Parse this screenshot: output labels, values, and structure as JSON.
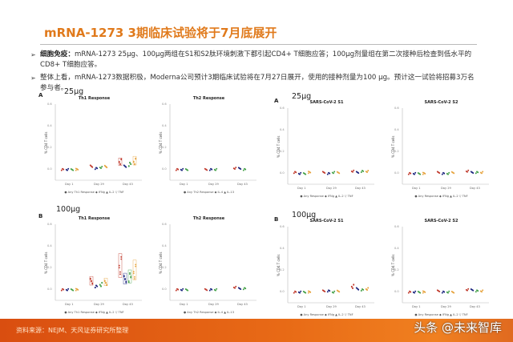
{
  "header": {
    "title": "mRNA-1273 3期临床试验将于7月底展开"
  },
  "bullets": [
    {
      "label": "细胞免疫：",
      "text": "mRNA-1273 25μg、100μg两组在S1和S2肽环境刺激下都引起CD4+ T细胞应答；100μg剂量组在第二次接种后检查到低水平的CD8+ T细胞应答。"
    },
    {
      "label": "",
      "text": "整体上看，mRNA-1273数据积极，Moderna公司预计3期临床试验将在7月27日展开，使用的接种剂量为100 μg。预计这一试验将招募3万名参与者。"
    }
  ],
  "panels": {
    "left_a": {
      "letter": "A",
      "dose": "25μg"
    },
    "left_b": {
      "letter": "B",
      "dose": "100μg"
    },
    "right_a": {
      "letter": "A",
      "dose": "25μg"
    },
    "right_b": {
      "letter": "B",
      "dose": "100μg"
    }
  },
  "axis": {
    "ylabel": "% CD4 T cells",
    "yticks": [
      "0.6",
      "0.4",
      "0.2",
      "0.0"
    ],
    "xticks": [
      "Day 1",
      "Day 29",
      "Day 43"
    ]
  },
  "legends": {
    "th1": "● Any Th1 Response  ◆ IFNg  ▲ IL-2  ▽ TNF",
    "th2": "● Any Th2 Response  ◆ IL-4  ▲ IL-13",
    "sars": "● Any Response  ◆ IFNg  ▲ IL-2  ▽ TNF"
  },
  "chart_titles": {
    "th1": "Th1 Response",
    "th2": "Th2 Response",
    "s1": "SARS-CoV-2 S1",
    "s2": "SARS-CoV-2 S2"
  },
  "chart_data": [
    {
      "type": "scatter",
      "title": "Th1 Response (25μg)",
      "ylabel": "% CD4 T cells",
      "categories": [
        "Day 1",
        "Day 29",
        "Day 43"
      ],
      "ylim": [
        -0.1,
        0.6
      ],
      "series": [
        {
          "name": "Any Th1 Response",
          "values": [
            0.0,
            0.03,
            0.07
          ]
        },
        {
          "name": "IFNg",
          "values": [
            0.0,
            0.01,
            0.03
          ]
        },
        {
          "name": "IL-2",
          "values": [
            0.0,
            0.02,
            0.05
          ]
        },
        {
          "name": "TNF",
          "values": [
            0.0,
            0.03,
            0.08
          ]
        }
      ]
    },
    {
      "type": "scatter",
      "title": "Th2 Response (25μg)",
      "ylabel": "% CD4 T cells",
      "categories": [
        "Day 1",
        "Day 29",
        "Day 43"
      ],
      "ylim": [
        -0.1,
        0.6
      ],
      "series": [
        {
          "name": "Any Th2 Response",
          "values": [
            0.0,
            0.0,
            0.01
          ]
        },
        {
          "name": "IL-4",
          "values": [
            0.0,
            0.0,
            0.01
          ]
        },
        {
          "name": "IL-13",
          "values": [
            0.0,
            0.0,
            0.0
          ]
        }
      ]
    },
    {
      "type": "scatter",
      "title": "SARS-CoV-2 S1 (25μg)",
      "ylabel": "% CD4 T cells",
      "categories": [
        "Day 1",
        "Day 29",
        "Day 43"
      ],
      "ylim": [
        -0.1,
        0.6
      ],
      "series": [
        {
          "name": "Any Response",
          "values": [
            0.01,
            0.01,
            0.02
          ]
        },
        {
          "name": "IFNg",
          "values": [
            0.0,
            0.0,
            0.01
          ]
        },
        {
          "name": "IL-2",
          "values": [
            0.0,
            0.01,
            0.02
          ]
        },
        {
          "name": "TNF",
          "values": [
            0.01,
            0.01,
            0.02
          ]
        }
      ]
    },
    {
      "type": "scatter",
      "title": "SARS-CoV-2 S2 (25μg)",
      "ylabel": "% CD4 T cells",
      "categories": [
        "Day 1",
        "Day 29",
        "Day 43"
      ],
      "ylim": [
        -0.1,
        0.6
      ],
      "series": [
        {
          "name": "Any Response",
          "values": [
            0.0,
            0.01,
            0.02
          ]
        },
        {
          "name": "IFNg",
          "values": [
            0.0,
            0.0,
            0.01
          ]
        },
        {
          "name": "IL-2",
          "values": [
            0.0,
            0.0,
            0.01
          ]
        },
        {
          "name": "TNF",
          "values": [
            0.0,
            0.01,
            0.01
          ]
        }
      ]
    },
    {
      "type": "scatter",
      "title": "Th1 Response (100μg)",
      "ylabel": "% CD4 T cells",
      "categories": [
        "Day 1",
        "Day 29",
        "Day 43"
      ],
      "ylim": [
        -0.1,
        0.6
      ],
      "series": [
        {
          "name": "Any Th1 Response",
          "values": [
            0.0,
            0.08,
            0.22
          ]
        },
        {
          "name": "IFNg",
          "values": [
            0.0,
            0.03,
            0.1
          ]
        },
        {
          "name": "IL-2",
          "values": [
            0.0,
            0.05,
            0.12
          ]
        },
        {
          "name": "TNF",
          "values": [
            0.0,
            0.07,
            0.18
          ]
        }
      ]
    },
    {
      "type": "scatter",
      "title": "Th2 Response (100μg)",
      "ylabel": "% CD4 T cells",
      "categories": [
        "Day 1",
        "Day 29",
        "Day 43"
      ],
      "ylim": [
        -0.1,
        0.6
      ],
      "series": [
        {
          "name": "Any Th2 Response",
          "values": [
            0.0,
            0.0,
            0.02
          ]
        },
        {
          "name": "IL-4",
          "values": [
            0.0,
            0.0,
            0.01
          ]
        },
        {
          "name": "IL-13",
          "values": [
            0.0,
            0.0,
            0.01
          ]
        }
      ]
    },
    {
      "type": "scatter",
      "title": "SARS-CoV-2 S1 (100μg)",
      "ylabel": "% CD4 T cells",
      "categories": [
        "Day 1",
        "Day 29",
        "Day 43"
      ],
      "ylim": [
        -0.1,
        0.6
      ],
      "series": [
        {
          "name": "Any Response",
          "values": [
            0.0,
            0.01,
            0.05
          ]
        },
        {
          "name": "IFNg",
          "values": [
            0.0,
            0.01,
            0.03
          ]
        },
        {
          "name": "IL-2",
          "values": [
            0.0,
            0.0,
            0.02
          ]
        },
        {
          "name": "TNF",
          "values": [
            0.0,
            0.01,
            0.03
          ]
        }
      ]
    },
    {
      "type": "scatter",
      "title": "SARS-CoV-2 S2 (100μg)",
      "ylabel": "% CD4 T cells",
      "categories": [
        "Day 1",
        "Day 29",
        "Day 43"
      ],
      "ylim": [
        -0.1,
        0.6
      ],
      "series": [
        {
          "name": "Any Response",
          "values": [
            0.0,
            0.01,
            0.02
          ]
        },
        {
          "name": "IFNg",
          "values": [
            0.0,
            0.0,
            0.02
          ]
        },
        {
          "name": "IL-2",
          "values": [
            0.0,
            0.0,
            0.01
          ]
        },
        {
          "name": "TNF",
          "values": [
            0.0,
            0.0,
            0.01
          ]
        }
      ]
    }
  ],
  "footer": {
    "source": "资料来源：NEJM、天风证券研究所整理",
    "watermark": "头条 @未来智库"
  }
}
